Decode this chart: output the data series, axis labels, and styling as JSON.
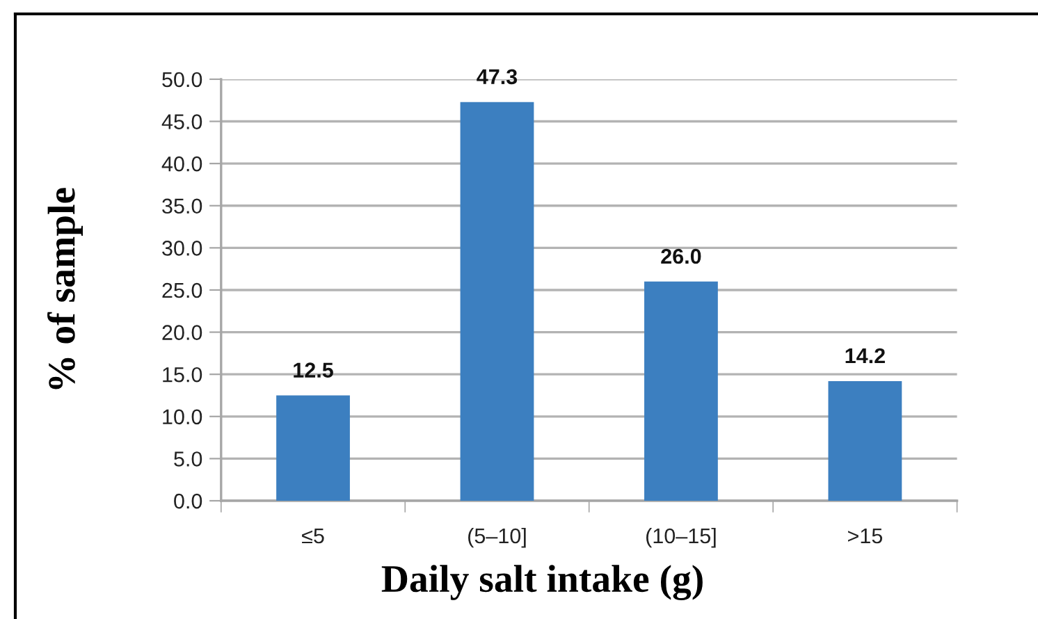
{
  "chart_data": {
    "type": "bar",
    "xlabel": "Daily salt intake (g)",
    "ylabel": "% of sample",
    "categories": [
      "≤5",
      "(5–10]",
      "(10–15]",
      ">15"
    ],
    "values": [
      12.5,
      47.3,
      26.0,
      14.2
    ],
    "value_labels": [
      "12.5",
      "47.3",
      "26.0",
      "14.2"
    ],
    "color": "#3c7fc0",
    "ylim": [
      0,
      50
    ],
    "yticks": [
      {
        "value": 0,
        "label": "0.0"
      },
      {
        "value": 5,
        "label": "5.0"
      },
      {
        "value": 10,
        "label": "10.0"
      },
      {
        "value": 15,
        "label": "15.0"
      },
      {
        "value": 20,
        "label": "20.0"
      },
      {
        "value": 25,
        "label": "25.0"
      },
      {
        "value": 30,
        "label": "30.0"
      },
      {
        "value": 35,
        "label": "35.0"
      },
      {
        "value": 40,
        "label": "40.0"
      },
      {
        "value": 45,
        "label": "45.0"
      },
      {
        "value": 50,
        "label": "50.0"
      }
    ],
    "grid": "y"
  }
}
